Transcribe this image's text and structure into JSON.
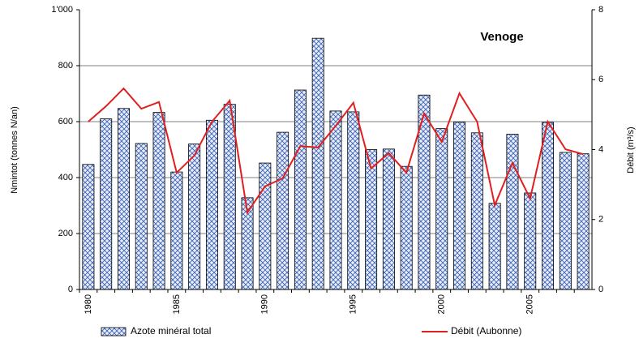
{
  "chart_data": {
    "type": "bar-line",
    "annotation": "Venoge",
    "y_label": "Nmintot (tonnes N/an)",
    "y2_label": "Débit (m³/s)",
    "categories": [
      "1980",
      null,
      null,
      null,
      null,
      "1985",
      null,
      null,
      null,
      null,
      "1990",
      null,
      null,
      null,
      null,
      "1995",
      null,
      null,
      null,
      null,
      "2000",
      null,
      null,
      null,
      null,
      "2005",
      null,
      null,
      null
    ],
    "series": [
      {
        "name": "Azote minéral total",
        "type": "bar",
        "color": "#3a5fb0",
        "values": [
          447,
          610,
          647,
          522,
          633,
          420,
          520,
          605,
          662,
          328,
          452,
          562,
          713,
          898,
          638,
          635,
          500,
          502,
          440,
          695,
          575,
          598,
          560,
          308,
          555,
          345,
          597,
          490,
          485
        ]
      },
      {
        "name": "Débit (Aubonne)",
        "type": "line",
        "axis": "y2",
        "color": "#e02020",
        "values": [
          4.8,
          5.24,
          5.75,
          5.17,
          5.36,
          3.34,
          3.83,
          4.8,
          5.4,
          2.2,
          2.95,
          3.18,
          4.1,
          4.06,
          4.68,
          5.34,
          3.46,
          3.9,
          3.34,
          5.03,
          4.22,
          5.61,
          4.8,
          2.41,
          3.62,
          2.6,
          4.8,
          4.01,
          3.87
        ]
      }
    ],
    "ylim": [
      0,
      1000
    ],
    "yticks": [
      0,
      200,
      400,
      600,
      800,
      {
        "value": 1000,
        "label": "1'000"
      }
    ],
    "y2lim": [
      0,
      8
    ],
    "y2ticks": [
      0,
      2,
      4,
      6,
      8
    ],
    "grid": true,
    "legend": "bottom"
  }
}
